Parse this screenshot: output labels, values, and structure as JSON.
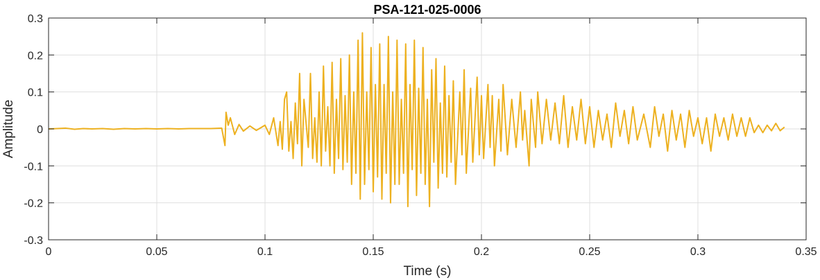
{
  "chart_data": {
    "type": "line",
    "title": "PSA-121-025-0006",
    "xlabel": "Time (s)",
    "ylabel": "Amplitude",
    "xlim": [
      0,
      0.35
    ],
    "ylim": [
      -0.3,
      0.3
    ],
    "xticks": [
      0,
      0.05,
      0.1,
      0.15,
      0.2,
      0.25,
      0.3,
      0.35
    ],
    "xtick_labels": [
      "0",
      "0.05",
      "0.1",
      "0.15",
      "0.2",
      "0.25",
      "0.3",
      "0.35"
    ],
    "yticks": [
      -0.3,
      -0.2,
      -0.1,
      0,
      0.1,
      0.2,
      0.3
    ],
    "ytick_labels": [
      "-0.3",
      "-0.2",
      "-0.1",
      "0",
      "0.1",
      "0.2",
      "0.3"
    ],
    "grid": true,
    "legend": "none",
    "colors": {
      "series": "#EDB120",
      "axes": "#262626",
      "grid": "#dfdfdf"
    },
    "series": [
      {
        "x_start": 0,
        "x_end": 0.34,
        "points": [
          [
            0.0,
            0.0
          ],
          [
            0.004,
            0.001
          ],
          [
            0.008,
            0.002
          ],
          [
            0.012,
            -0.001
          ],
          [
            0.016,
            0.001
          ],
          [
            0.02,
            0.0
          ],
          [
            0.025,
            0.001
          ],
          [
            0.03,
            -0.001
          ],
          [
            0.035,
            0.001
          ],
          [
            0.04,
            0.0
          ],
          [
            0.045,
            0.001
          ],
          [
            0.05,
            0.0
          ],
          [
            0.055,
            0.001
          ],
          [
            0.06,
            0.0
          ],
          [
            0.065,
            0.001
          ],
          [
            0.07,
            0.001
          ],
          [
            0.075,
            0.001
          ],
          [
            0.08,
            0.002
          ],
          [
            0.0815,
            -0.045
          ],
          [
            0.082,
            0.045
          ],
          [
            0.083,
            0.01
          ],
          [
            0.084,
            0.03
          ],
          [
            0.086,
            -0.015
          ],
          [
            0.088,
            0.012
          ],
          [
            0.09,
            -0.006
          ],
          [
            0.093,
            0.008
          ],
          [
            0.096,
            -0.004
          ],
          [
            0.1,
            0.01
          ],
          [
            0.102,
            -0.015
          ],
          [
            0.104,
            0.03
          ],
          [
            0.106,
            -0.045
          ],
          [
            0.107,
            0.02
          ],
          [
            0.108,
            -0.055
          ],
          [
            0.109,
            0.08
          ],
          [
            0.11,
            0.1
          ],
          [
            0.111,
            -0.06
          ],
          [
            0.112,
            0.02
          ],
          [
            0.113,
            -0.08
          ],
          [
            0.114,
            0.07
          ],
          [
            0.115,
            -0.04
          ],
          [
            0.116,
            0.15
          ],
          [
            0.117,
            -0.1
          ],
          [
            0.118,
            0.08
          ],
          [
            0.12,
            -0.05
          ],
          [
            0.121,
            0.15
          ],
          [
            0.122,
            -0.08
          ],
          [
            0.123,
            0.03
          ],
          [
            0.124,
            -0.09
          ],
          [
            0.125,
            0.1
          ],
          [
            0.126,
            -0.1
          ],
          [
            0.127,
            0.17
          ],
          [
            0.128,
            -0.06
          ],
          [
            0.129,
            0.06
          ],
          [
            0.13,
            -0.1
          ],
          [
            0.131,
            0.18
          ],
          [
            0.132,
            -0.12
          ],
          [
            0.133,
            0.08
          ],
          [
            0.134,
            -0.08
          ],
          [
            0.135,
            0.19
          ],
          [
            0.136,
            -0.11
          ],
          [
            0.137,
            0.09
          ],
          [
            0.138,
            -0.09
          ],
          [
            0.139,
            0.2
          ],
          [
            0.14,
            -0.15
          ],
          [
            0.141,
            0.1
          ],
          [
            0.142,
            -0.12
          ],
          [
            0.143,
            0.24
          ],
          [
            0.144,
            -0.19
          ],
          [
            0.145,
            0.26
          ],
          [
            0.146,
            -0.15
          ],
          [
            0.147,
            0.1
          ],
          [
            0.148,
            -0.11
          ],
          [
            0.149,
            0.22
          ],
          [
            0.15,
            -0.17
          ],
          [
            0.151,
            0.12
          ],
          [
            0.152,
            -0.13
          ],
          [
            0.153,
            0.23
          ],
          [
            0.154,
            -0.19
          ],
          [
            0.155,
            0.12
          ],
          [
            0.156,
            -0.12
          ],
          [
            0.157,
            0.25
          ],
          [
            0.158,
            -0.2
          ],
          [
            0.159,
            0.1
          ],
          [
            0.16,
            -0.15
          ],
          [
            0.161,
            0.24
          ],
          [
            0.162,
            -0.15
          ],
          [
            0.163,
            0.08
          ],
          [
            0.164,
            -0.12
          ],
          [
            0.165,
            0.23
          ],
          [
            0.166,
            -0.21
          ],
          [
            0.167,
            0.12
          ],
          [
            0.168,
            -0.11
          ],
          [
            0.169,
            0.24
          ],
          [
            0.17,
            -0.18
          ],
          [
            0.171,
            0.11
          ],
          [
            0.172,
            -0.12
          ],
          [
            0.173,
            0.22
          ],
          [
            0.174,
            -0.15
          ],
          [
            0.175,
            0.08
          ],
          [
            0.176,
            -0.21
          ],
          [
            0.177,
            0.16
          ],
          [
            0.178,
            -0.09
          ],
          [
            0.179,
            0.19
          ],
          [
            0.18,
            -0.16
          ],
          [
            0.181,
            0.07
          ],
          [
            0.182,
            -0.12
          ],
          [
            0.183,
            0.17
          ],
          [
            0.184,
            -0.13
          ],
          [
            0.185,
            0.09
          ],
          [
            0.186,
            -0.09
          ],
          [
            0.187,
            0.13
          ],
          [
            0.188,
            -0.15
          ],
          [
            0.19,
            0.1
          ],
          [
            0.191,
            -0.07
          ],
          [
            0.192,
            0.16
          ],
          [
            0.193,
            -0.12
          ],
          [
            0.195,
            0.11
          ],
          [
            0.196,
            -0.09
          ],
          [
            0.198,
            0.14
          ],
          [
            0.199,
            -0.07
          ],
          [
            0.2,
            0.09
          ],
          [
            0.201,
            -0.08
          ],
          [
            0.203,
            0.12
          ],
          [
            0.204,
            -0.05
          ],
          [
            0.205,
            0.09
          ],
          [
            0.206,
            -0.1
          ],
          [
            0.208,
            0.08
          ],
          [
            0.209,
            -0.06
          ],
          [
            0.21,
            0.12
          ],
          [
            0.212,
            -0.07
          ],
          [
            0.214,
            0.08
          ],
          [
            0.216,
            -0.05
          ],
          [
            0.218,
            0.1
          ],
          [
            0.219,
            -0.03
          ],
          [
            0.22,
            0.05
          ],
          [
            0.222,
            -0.1
          ],
          [
            0.223,
            0.08
          ],
          [
            0.225,
            -0.05
          ],
          [
            0.226,
            0.1
          ],
          [
            0.228,
            -0.04
          ],
          [
            0.23,
            0.08
          ],
          [
            0.232,
            -0.03
          ],
          [
            0.234,
            0.07
          ],
          [
            0.236,
            -0.04
          ],
          [
            0.238,
            0.09
          ],
          [
            0.24,
            -0.05
          ],
          [
            0.242,
            0.06
          ],
          [
            0.244,
            -0.03
          ],
          [
            0.246,
            0.08
          ],
          [
            0.248,
            -0.04
          ],
          [
            0.25,
            0.06
          ],
          [
            0.252,
            -0.05
          ],
          [
            0.254,
            0.05
          ],
          [
            0.256,
            -0.03
          ],
          [
            0.258,
            0.04
          ],
          [
            0.26,
            -0.05
          ],
          [
            0.262,
            0.07
          ],
          [
            0.264,
            -0.02
          ],
          [
            0.266,
            0.05
          ],
          [
            0.268,
            -0.04
          ],
          [
            0.27,
            0.06
          ],
          [
            0.272,
            -0.03
          ],
          [
            0.275,
            0.04
          ],
          [
            0.278,
            -0.05
          ],
          [
            0.28,
            0.06
          ],
          [
            0.282,
            -0.02
          ],
          [
            0.284,
            0.04
          ],
          [
            0.286,
            -0.06
          ],
          [
            0.288,
            0.05
          ],
          [
            0.29,
            -0.03
          ],
          [
            0.292,
            0.04
          ],
          [
            0.294,
            -0.05
          ],
          [
            0.296,
            0.05
          ],
          [
            0.298,
            -0.02
          ],
          [
            0.3,
            0.03
          ],
          [
            0.302,
            -0.04
          ],
          [
            0.304,
            0.03
          ],
          [
            0.306,
            -0.06
          ],
          [
            0.308,
            0.04
          ],
          [
            0.31,
            -0.02
          ],
          [
            0.312,
            0.03
          ],
          [
            0.314,
            -0.03
          ],
          [
            0.316,
            0.04
          ],
          [
            0.318,
            -0.02
          ],
          [
            0.32,
            0.03
          ],
          [
            0.322,
            -0.02
          ],
          [
            0.324,
            0.03
          ],
          [
            0.326,
            -0.01
          ],
          [
            0.328,
            0.01
          ],
          [
            0.33,
            -0.01
          ],
          [
            0.332,
            0.01
          ],
          [
            0.334,
            -0.005
          ],
          [
            0.336,
            0.015
          ],
          [
            0.338,
            -0.005
          ],
          [
            0.34,
            0.005
          ]
        ]
      }
    ]
  }
}
